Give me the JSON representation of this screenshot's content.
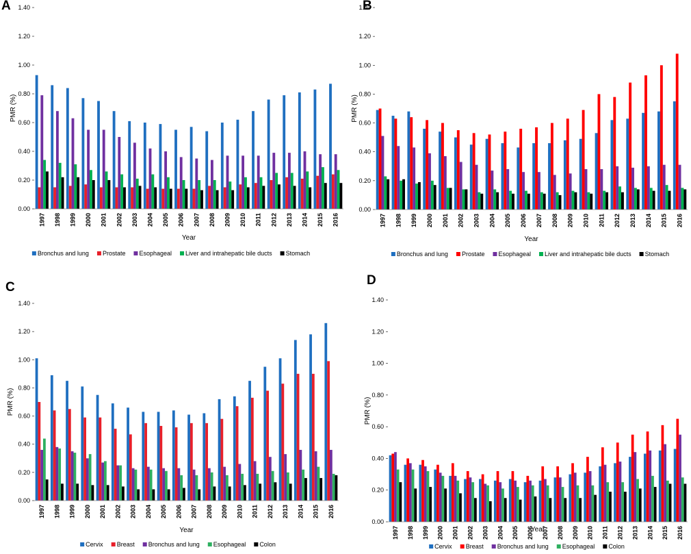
{
  "chart_data": [
    {
      "label": "A",
      "type": "bar",
      "y_label": "PMR (%)",
      "x_label": "Year",
      "categories": [
        "1997",
        "1998",
        "1999",
        "2000",
        "2001",
        "2002",
        "2003",
        "2004",
        "2005",
        "2006",
        "2007",
        "2008",
        "2009",
        "2010",
        "2011",
        "2012",
        "2013",
        "2014",
        "2015",
        "2016"
      ],
      "ylim": [
        0,
        1.4
      ],
      "yticks": [
        {
          "value": 0,
          "label": "0.00"
        },
        {
          "value": 0.2,
          "label": "0.20"
        },
        {
          "value": 0.4,
          "label": "0.40"
        },
        {
          "value": 0.6,
          "label": "0.60"
        },
        {
          "value": 0.8,
          "label": "0.80"
        },
        {
          "value": 1.0,
          "label": "1.00"
        },
        {
          "value": 1.2,
          "label": "1.20"
        },
        {
          "value": 1.4,
          "label": "1.40"
        }
      ],
      "series": [
        {
          "name": "Bronchus and lung",
          "color": "#1f6fc0",
          "values": [
            0.93,
            0.86,
            0.84,
            0.77,
            0.75,
            0.68,
            0.61,
            0.6,
            0.59,
            0.55,
            0.57,
            0.54,
            0.6,
            0.62,
            0.68,
            0.76,
            0.79,
            0.81,
            0.83,
            0.87
          ]
        },
        {
          "name": "Prostate",
          "color": "#e8202a",
          "values": [
            0.15,
            0.15,
            0.16,
            0.17,
            0.15,
            0.15,
            0.15,
            0.14,
            0.14,
            0.14,
            0.14,
            0.16,
            0.15,
            0.17,
            0.18,
            0.2,
            0.22,
            0.21,
            0.23,
            0.24
          ]
        },
        {
          "name": "Esophageal",
          "color": "#7030a0",
          "values": [
            0.79,
            0.68,
            0.63,
            0.55,
            0.55,
            0.5,
            0.46,
            0.42,
            0.4,
            0.36,
            0.35,
            0.34,
            0.37,
            0.37,
            0.37,
            0.39,
            0.39,
            0.4,
            0.38,
            0.38
          ]
        },
        {
          "name": "Liver and intrahepatic bile ducts",
          "color": "#00b050",
          "values": [
            0.34,
            0.32,
            0.31,
            0.27,
            0.26,
            0.24,
            0.21,
            0.24,
            0.22,
            0.2,
            0.2,
            0.2,
            0.19,
            0.22,
            0.22,
            0.25,
            0.25,
            0.26,
            0.29,
            0.27
          ]
        },
        {
          "name": "Stomach",
          "color": "#000000",
          "values": [
            0.26,
            0.22,
            0.22,
            0.2,
            0.2,
            0.15,
            0.16,
            0.15,
            0.14,
            0.14,
            0.13,
            0.13,
            0.13,
            0.15,
            0.16,
            0.17,
            0.16,
            0.15,
            0.18,
            0.18
          ]
        }
      ]
    },
    {
      "label": "B",
      "type": "bar",
      "y_label": "PMR (%)",
      "x_label": "Year",
      "categories": [
        "1997",
        "1998",
        "1999",
        "2000",
        "2001",
        "2002",
        "2003",
        "2004",
        "2005",
        "2006",
        "2007",
        "2008",
        "2009",
        "2010",
        "2011",
        "2012",
        "2013",
        "2014",
        "2015",
        "2016"
      ],
      "ylim": [
        0,
        1.4
      ],
      "yticks": [
        {
          "value": 0,
          "label": "0.00"
        },
        {
          "value": 0.2,
          "label": "0.20"
        },
        {
          "value": 0.4,
          "label": "0.40"
        },
        {
          "value": 0.6,
          "label": "0.60"
        },
        {
          "value": 0.8,
          "label": "0.80"
        },
        {
          "value": 1.0,
          "label": "1.00"
        },
        {
          "value": 1.2,
          "label": "1.20"
        },
        {
          "value": 1.4,
          "label": "1.40"
        }
      ],
      "series": [
        {
          "name": "Bronchus and lung",
          "color": "#1f6fc0",
          "values": [
            0.69,
            0.65,
            0.68,
            0.56,
            0.54,
            0.5,
            0.45,
            0.49,
            0.46,
            0.43,
            0.46,
            0.46,
            0.48,
            0.49,
            0.53,
            0.62,
            0.63,
            0.67,
            0.68,
            0.75
          ]
        },
        {
          "name": "Prostate",
          "color": "#ff0000",
          "values": [
            0.7,
            0.63,
            0.64,
            0.62,
            0.6,
            0.55,
            0.53,
            0.52,
            0.54,
            0.56,
            0.57,
            0.6,
            0.63,
            0.69,
            0.8,
            0.78,
            0.88,
            0.93,
            1.0,
            1.08
          ]
        },
        {
          "name": "Esophageal",
          "color": "#7030a0",
          "values": [
            0.51,
            0.44,
            0.43,
            0.39,
            0.37,
            0.33,
            0.31,
            0.27,
            0.28,
            0.26,
            0.26,
            0.24,
            0.25,
            0.28,
            0.28,
            0.3,
            0.29,
            0.3,
            0.31,
            0.31
          ]
        },
        {
          "name": "Liver and intrahepatic bile ducts",
          "color": "#00b050",
          "values": [
            0.23,
            0.2,
            0.18,
            0.2,
            0.15,
            0.14,
            0.12,
            0.14,
            0.13,
            0.13,
            0.12,
            0.12,
            0.13,
            0.12,
            0.13,
            0.16,
            0.15,
            0.15,
            0.17,
            0.15
          ]
        },
        {
          "name": "Stomach",
          "color": "#000000",
          "values": [
            0.21,
            0.21,
            0.19,
            0.17,
            0.15,
            0.14,
            0.11,
            0.12,
            0.11,
            0.11,
            0.11,
            0.1,
            0.12,
            0.11,
            0.12,
            0.12,
            0.14,
            0.13,
            0.13,
            0.14
          ]
        }
      ]
    },
    {
      "label": "C",
      "type": "bar",
      "y_label": "PMR (%)",
      "x_label": "Year",
      "categories": [
        "1997",
        "1998",
        "1999",
        "2000",
        "2001",
        "2002",
        "2003",
        "2004",
        "2005",
        "2006",
        "2007",
        "2008",
        "2009",
        "2010",
        "2011",
        "2012",
        "2013",
        "2014",
        "2015",
        "2016"
      ],
      "ylim": [
        0,
        1.4
      ],
      "yticks": [
        {
          "value": 0,
          "label": "0.00"
        },
        {
          "value": 0.2,
          "label": "0.20"
        },
        {
          "value": 0.4,
          "label": "0.40"
        },
        {
          "value": 0.6,
          "label": "0.60"
        },
        {
          "value": 0.8,
          "label": "0.80"
        },
        {
          "value": 1.0,
          "label": "1.00"
        },
        {
          "value": 1.2,
          "label": "1.20"
        },
        {
          "value": 1.4,
          "label": "1.40"
        }
      ],
      "series": [
        {
          "name": "Cervix",
          "color": "#1f6fc0",
          "values": [
            1.01,
            0.89,
            0.85,
            0.81,
            0.75,
            0.69,
            0.66,
            0.63,
            0.63,
            0.64,
            0.61,
            0.62,
            0.72,
            0.74,
            0.85,
            0.95,
            1.01,
            1.14,
            1.18,
            1.26
          ]
        },
        {
          "name": "Breast",
          "color": "#e8202a",
          "values": [
            0.7,
            0.64,
            0.65,
            0.59,
            0.59,
            0.51,
            0.47,
            0.55,
            0.53,
            0.52,
            0.55,
            0.55,
            0.58,
            0.67,
            0.73,
            0.78,
            0.83,
            0.9,
            0.9,
            0.99
          ]
        },
        {
          "name": "Bronchus and lung",
          "color": "#7030a0",
          "values": [
            0.36,
            0.38,
            0.35,
            0.3,
            0.27,
            0.25,
            0.23,
            0.24,
            0.23,
            0.23,
            0.22,
            0.23,
            0.24,
            0.26,
            0.28,
            0.31,
            0.33,
            0.36,
            0.35,
            0.36
          ]
        },
        {
          "name": "Esophageal",
          "color": "#2eb060",
          "values": [
            0.44,
            0.37,
            0.34,
            0.33,
            0.28,
            0.25,
            0.22,
            0.22,
            0.21,
            0.18,
            0.18,
            0.2,
            0.18,
            0.19,
            0.19,
            0.21,
            0.2,
            0.22,
            0.24,
            0.19
          ]
        },
        {
          "name": "Colon",
          "color": "#000000",
          "values": [
            0.15,
            0.12,
            0.12,
            0.11,
            0.11,
            0.1,
            0.08,
            0.08,
            0.08,
            0.09,
            0.08,
            0.1,
            0.1,
            0.11,
            0.12,
            0.13,
            0.12,
            0.16,
            0.16,
            0.18
          ]
        }
      ]
    },
    {
      "label": "D",
      "type": "bar",
      "y_label": "PMR (%)",
      "x_label": "Year",
      "categories": [
        "1997",
        "1998",
        "1999",
        "2000",
        "2001",
        "2002",
        "2003",
        "2004",
        "2005",
        "2006",
        "2007",
        "2008",
        "2009",
        "2010",
        "2011",
        "2012",
        "2013",
        "2014",
        "2015",
        "2016"
      ],
      "ylim": [
        0,
        1.4
      ],
      "yticks": [
        {
          "value": 0,
          "label": "0.00"
        },
        {
          "value": 0.2,
          "label": "0.20"
        },
        {
          "value": 0.4,
          "label": "0.40"
        },
        {
          "value": 0.6,
          "label": "0.60"
        },
        {
          "value": 0.8,
          "label": "0.80"
        },
        {
          "value": 1.0,
          "label": "1.00"
        },
        {
          "value": 1.2,
          "label": "1.20"
        },
        {
          "value": 1.4,
          "label": "1.40"
        }
      ],
      "series": [
        {
          "name": "Cervix",
          "color": "#1f6fc0",
          "values": [
            0.42,
            0.36,
            0.36,
            0.33,
            0.29,
            0.27,
            0.27,
            0.26,
            0.27,
            0.25,
            0.26,
            0.28,
            0.3,
            0.31,
            0.35,
            0.37,
            0.41,
            0.43,
            0.45,
            0.46
          ]
        },
        {
          "name": "Breast",
          "color": "#ff0000",
          "values": [
            0.43,
            0.4,
            0.39,
            0.36,
            0.37,
            0.32,
            0.3,
            0.32,
            0.32,
            0.29,
            0.35,
            0.35,
            0.37,
            0.41,
            0.47,
            0.5,
            0.55,
            0.57,
            0.61,
            0.65
          ]
        },
        {
          "name": "Bronchus and lung",
          "color": "#7030a0",
          "values": [
            0.44,
            0.37,
            0.35,
            0.31,
            0.29,
            0.28,
            0.24,
            0.25,
            0.26,
            0.26,
            0.27,
            0.28,
            0.31,
            0.32,
            0.36,
            0.38,
            0.44,
            0.45,
            0.49,
            0.55
          ]
        },
        {
          "name": "Esophageal",
          "color": "#2eb060",
          "values": [
            0.33,
            0.33,
            0.32,
            0.29,
            0.26,
            0.25,
            0.23,
            0.21,
            0.22,
            0.23,
            0.23,
            0.22,
            0.23,
            0.23,
            0.25,
            0.25,
            0.27,
            0.29,
            0.26,
            0.28
          ]
        },
        {
          "name": "Colon",
          "color": "#000000",
          "values": [
            0.25,
            0.21,
            0.22,
            0.21,
            0.18,
            0.15,
            0.13,
            0.15,
            0.14,
            0.16,
            0.15,
            0.15,
            0.15,
            0.17,
            0.19,
            0.19,
            0.21,
            0.22,
            0.24,
            0.24
          ]
        }
      ]
    }
  ]
}
